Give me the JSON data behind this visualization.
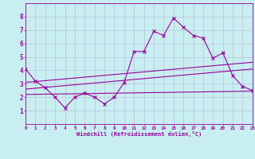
{
  "xlabel": "Windchill (Refroidissement éolien,°C)",
  "xlim": [
    0,
    23
  ],
  "ylim": [
    0,
    9
  ],
  "xticks": [
    0,
    1,
    2,
    3,
    4,
    5,
    6,
    7,
    8,
    9,
    10,
    11,
    12,
    13,
    14,
    15,
    16,
    17,
    18,
    19,
    20,
    21,
    22,
    23
  ],
  "yticks": [
    1,
    2,
    3,
    4,
    5,
    6,
    7,
    8
  ],
  "background_color": "#c9eef1",
  "grid_color": "#b0b8d0",
  "line_color": "#990099",
  "line1_x": [
    0,
    1,
    2,
    3,
    4,
    5,
    6,
    7,
    8,
    9,
    10,
    11,
    12,
    13,
    14,
    15,
    16,
    17,
    18,
    19,
    20,
    21,
    22,
    23
  ],
  "line1_y": [
    4.1,
    3.2,
    2.7,
    2.0,
    1.2,
    2.0,
    2.3,
    2.0,
    1.5,
    2.0,
    3.1,
    5.4,
    5.4,
    6.9,
    6.6,
    7.9,
    7.2,
    6.6,
    6.4,
    4.9,
    5.3,
    3.6,
    2.8,
    2.5
  ],
  "line2_x": [
    0,
    23
  ],
  "line2_y": [
    3.1,
    4.6
  ],
  "line3_x": [
    0,
    23
  ],
  "line3_y": [
    2.6,
    4.1
  ],
  "line4_x": [
    0,
    23
  ],
  "line4_y": [
    2.2,
    2.45
  ]
}
